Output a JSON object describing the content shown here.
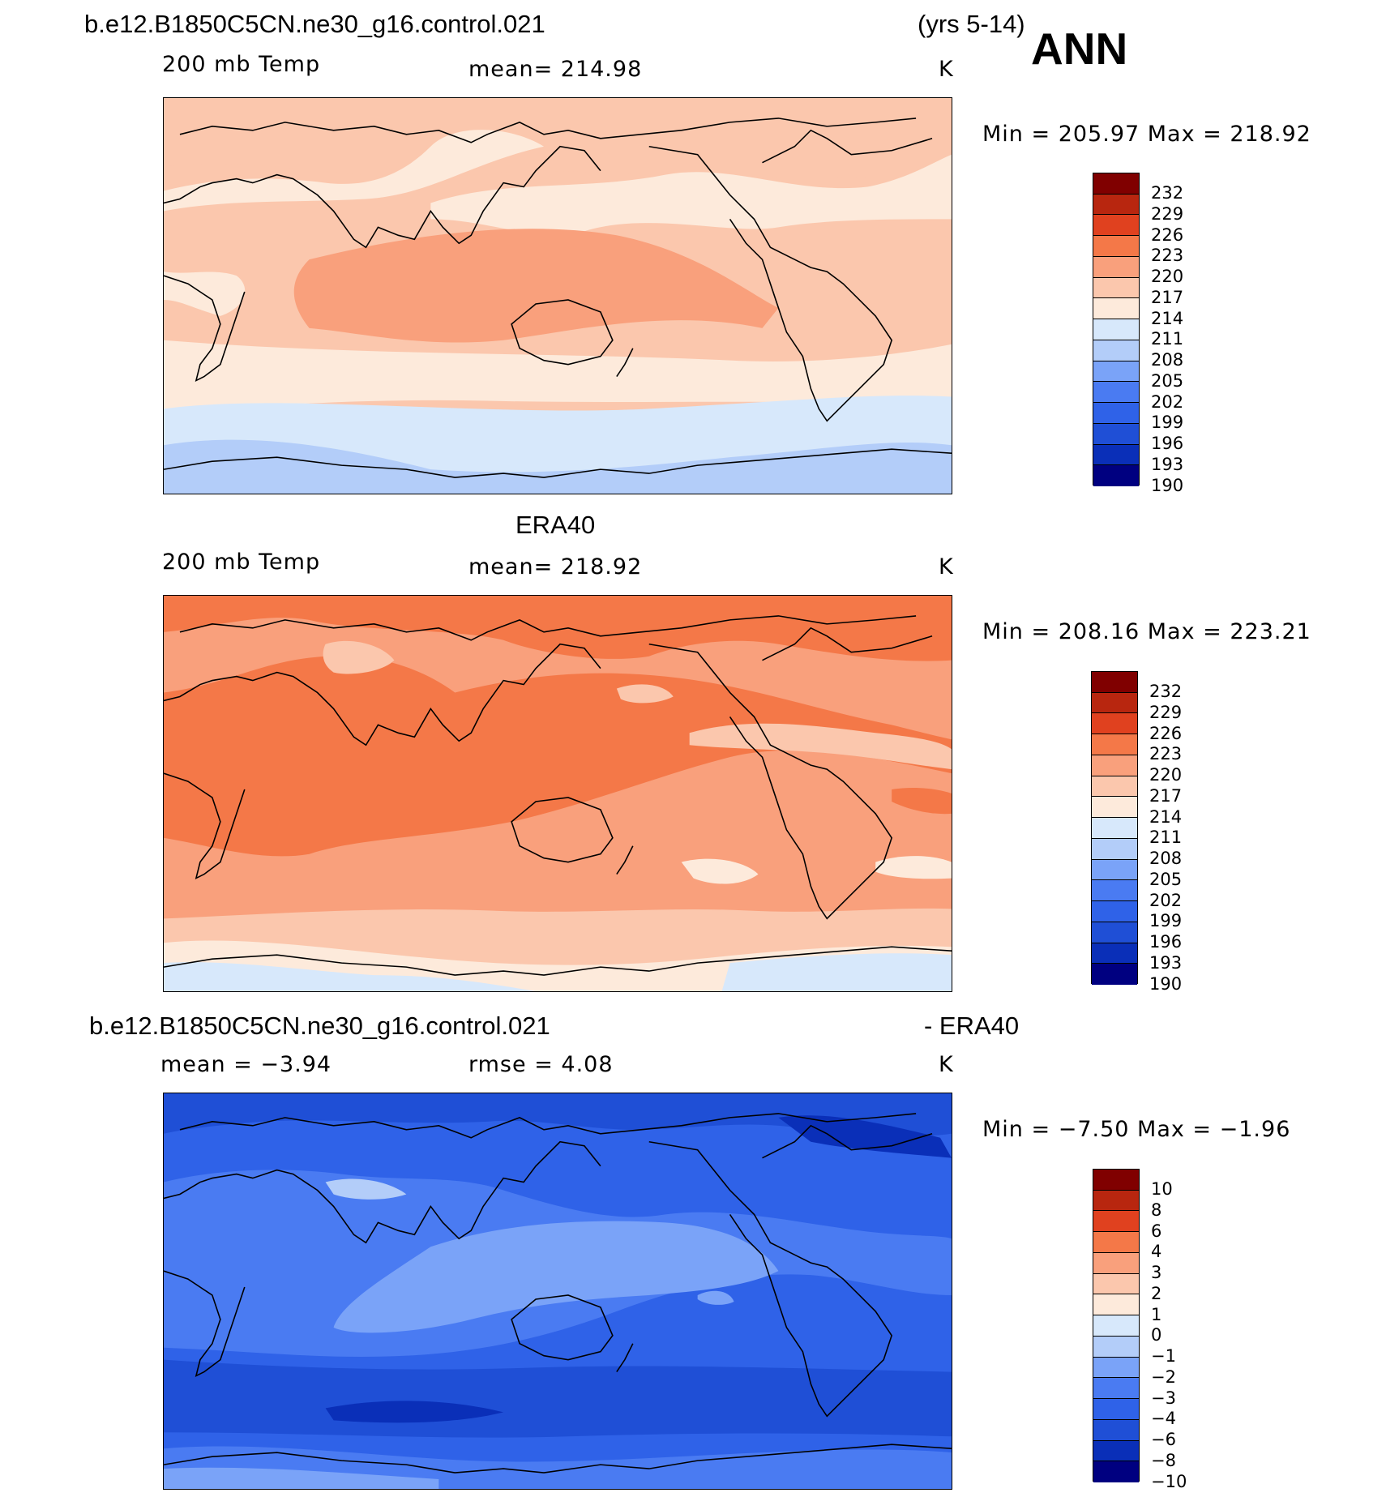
{
  "page": {
    "title_left": "b.e12.B1850C5CN.ne30_g16.control.021",
    "title_years": "(yrs 5-14)",
    "season": "ANN"
  },
  "colors": {
    "abs_scale": [
      "#000080",
      "#0a2fb8",
      "#1f4fd6",
      "#2f62e8",
      "#4a7bf2",
      "#7aa3f8",
      "#b3cdf9",
      "#d7e8fb",
      "#fdeadb",
      "#fbc7ad",
      "#f9a07c",
      "#f47848",
      "#e0411f",
      "#b8260f",
      "#800000"
    ],
    "diff_scale": [
      "#000080",
      "#0a2fb8",
      "#1f4fd6",
      "#2f62e8",
      "#4a7bf2",
      "#7aa3f8",
      "#b3cdf9",
      "#d7e8fb",
      "#fdeadb",
      "#fbc7ad",
      "#f9a07c",
      "#f47848",
      "#e0411f",
      "#b8260f",
      "#800000"
    ],
    "land_outline": "#000000"
  },
  "panels": [
    {
      "header": "",
      "left_label": "200 mb Temp",
      "center_label": "mean=  214.98",
      "units": "K",
      "minmax": "Min  =  205.97  Max  =  218.92",
      "colorbar_labels": [
        "232",
        "229",
        "226",
        "223",
        "220",
        "217",
        "214",
        "211",
        "208",
        "205",
        "202",
        "199",
        "196",
        "193",
        "190"
      ]
    },
    {
      "header": "ERA40",
      "left_label": "200 mb Temp",
      "center_label": "mean=  218.92",
      "units": "K",
      "minmax": "Min  =  208.16  Max  =  223.21",
      "colorbar_labels": [
        "232",
        "229",
        "226",
        "223",
        "220",
        "217",
        "214",
        "211",
        "208",
        "205",
        "202",
        "199",
        "196",
        "193",
        "190"
      ]
    },
    {
      "header_left": "b.e12.B1850C5CN.ne30_g16.control.021",
      "header_right": "- ERA40",
      "left_label": "mean  =    −3.94",
      "center_label": "rmse  =     4.08",
      "units": "K",
      "minmax": "Min  =    −7.50  Max  =    −1.96",
      "colorbar_labels": [
        "10",
        "8",
        "6",
        "4",
        "3",
        "2",
        "1",
        "0",
        "−1",
        "−2",
        "−3",
        "−4",
        "−6",
        "−8",
        "−10"
      ]
    }
  ]
}
